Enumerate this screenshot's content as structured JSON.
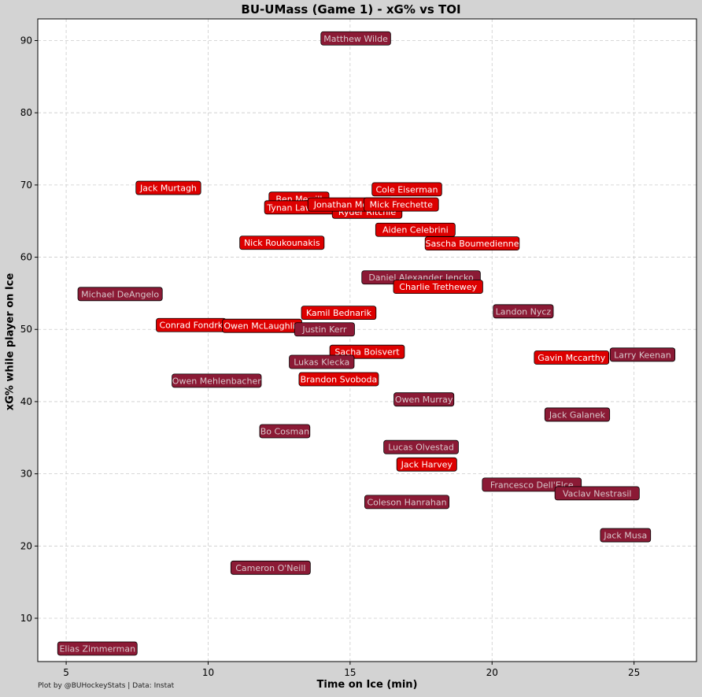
{
  "chart_data": {
    "type": "scatter",
    "title": "BU-UMass (Game 1) - xG% vs TOI",
    "xlabel": "Time on Ice (min)",
    "ylabel": "xG% while player on Ice",
    "xlim": [
      4.0,
      27.2
    ],
    "ylim": [
      4.0,
      93.0
    ],
    "xticks": [
      5,
      10,
      15,
      20,
      25
    ],
    "yticks": [
      10,
      20,
      30,
      40,
      50,
      60,
      70,
      80,
      90
    ],
    "grid": true,
    "colors": {
      "bu": "#dd0000",
      "umass": "#8b1a35",
      "bu_text": "#ffffff",
      "umass_text": "#d9c8cc",
      "background": "#d3d3d3",
      "plot_bg": "#ffffff",
      "grid": "#cccccc"
    },
    "points": [
      {
        "label": "Matthew Wilde",
        "x": 15.2,
        "y": 90.3,
        "team": "umass"
      },
      {
        "label": "Jack Murtagh",
        "x": 8.6,
        "y": 69.6,
        "team": "bu"
      },
      {
        "label": "Cole Eiserman",
        "x": 17.0,
        "y": 69.4,
        "team": "bu"
      },
      {
        "label": "Ben Merrill",
        "x": 13.2,
        "y": 68.1,
        "team": "bu"
      },
      {
        "label": "Tynan Lawrence",
        "x": 13.3,
        "y": 66.9,
        "team": "bu"
      },
      {
        "label": "Ryder Ritchie",
        "x": 15.6,
        "y": 66.3,
        "team": "bu"
      },
      {
        "label": "Jonathan Morello",
        "x": 15.0,
        "y": 67.3,
        "team": "bu"
      },
      {
        "label": "Mick Frechette",
        "x": 16.8,
        "y": 67.3,
        "team": "bu"
      },
      {
        "label": "Aiden Celebrini",
        "x": 17.3,
        "y": 63.8,
        "team": "bu"
      },
      {
        "label": "Sascha Boumedienne",
        "x": 19.3,
        "y": 61.9,
        "team": "bu"
      },
      {
        "label": "Nick Roukounakis",
        "x": 12.6,
        "y": 62.0,
        "team": "bu"
      },
      {
        "label": "Daniel Alexander Jencko",
        "x": 17.5,
        "y": 57.2,
        "team": "umass"
      },
      {
        "label": "Charlie Trethewey",
        "x": 18.1,
        "y": 55.9,
        "team": "bu"
      },
      {
        "label": "Michael DeAngelo",
        "x": 6.9,
        "y": 54.9,
        "team": "umass"
      },
      {
        "label": "Landon Nycz",
        "x": 21.1,
        "y": 52.5,
        "team": "umass"
      },
      {
        "label": "Kamil Bednarik",
        "x": 14.6,
        "y": 52.3,
        "team": "bu"
      },
      {
        "label": "Conrad Fondrk",
        "x": 9.4,
        "y": 50.6,
        "team": "bu"
      },
      {
        "label": "Owen McLaughlin",
        "x": 11.9,
        "y": 50.5,
        "team": "bu"
      },
      {
        "label": "Justin Kerr",
        "x": 14.1,
        "y": 50.0,
        "team": "umass"
      },
      {
        "label": "Sacha Boisvert",
        "x": 15.6,
        "y": 46.9,
        "team": "bu"
      },
      {
        "label": "Larry Keenan",
        "x": 25.3,
        "y": 46.5,
        "team": "umass"
      },
      {
        "label": "Gavin Mccarthy",
        "x": 22.8,
        "y": 46.1,
        "team": "bu"
      },
      {
        "label": "Lukas Klecka",
        "x": 14.0,
        "y": 45.5,
        "team": "umass"
      },
      {
        "label": "Brandon Svoboda",
        "x": 14.6,
        "y": 43.1,
        "team": "bu"
      },
      {
        "label": "Owen Mehlenbacher",
        "x": 10.3,
        "y": 42.9,
        "team": "umass"
      },
      {
        "label": "Owen Murray",
        "x": 17.6,
        "y": 40.3,
        "team": "umass"
      },
      {
        "label": "Jack Galanek",
        "x": 23.0,
        "y": 38.2,
        "team": "umass"
      },
      {
        "label": "Bo Cosman",
        "x": 12.7,
        "y": 35.9,
        "team": "umass"
      },
      {
        "label": "Lucas Olvestad",
        "x": 17.5,
        "y": 33.7,
        "team": "umass"
      },
      {
        "label": "Jack Harvey",
        "x": 17.7,
        "y": 31.3,
        "team": "bu"
      },
      {
        "label": "Francesco Dell'Elce",
        "x": 21.4,
        "y": 28.5,
        "team": "umass"
      },
      {
        "label": "Vaclav Nestrasil",
        "x": 23.7,
        "y": 27.3,
        "team": "umass"
      },
      {
        "label": "Coleson Hanrahan",
        "x": 17.0,
        "y": 26.1,
        "team": "umass"
      },
      {
        "label": "Jack Musa",
        "x": 24.7,
        "y": 21.5,
        "team": "umass"
      },
      {
        "label": "Cameron O'Neill",
        "x": 12.2,
        "y": 17.0,
        "team": "umass"
      },
      {
        "label": "Elias Zimmerman",
        "x": 6.1,
        "y": 5.8,
        "team": "umass"
      }
    ]
  },
  "footer": {
    "credit": "Plot by @BUHockeyStats | Data: Instat"
  }
}
